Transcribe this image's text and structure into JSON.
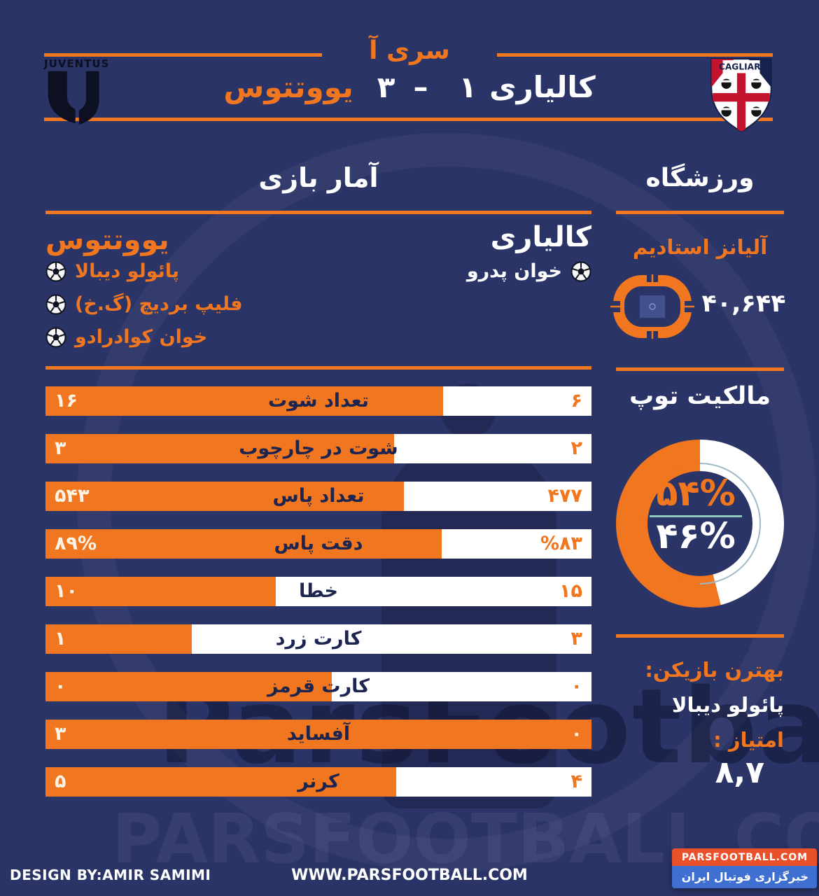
{
  "header": {
    "league": "سری آ",
    "home_team": "کالیاری",
    "home_score": "۱",
    "dash": "–",
    "away_score": "۳",
    "away_team": "یووتتوس",
    "juventus_wordmark": "JUVENTUS",
    "cagliari_wordmark": "CAGLIARI"
  },
  "sections": {
    "stats_title": "آمار بازی",
    "stadium_title": "ورزشگاه",
    "possession_title": "مالکیت توپ"
  },
  "scorers": {
    "juventus": {
      "team": "یووتتوس",
      "players": [
        "پائولو دیبالا",
        "فلیپ بردیچ (گ.خ)",
        "خوان کوادرادو"
      ]
    },
    "cagliari": {
      "team": "کالیاری",
      "players": [
        "خوان پدرو"
      ]
    }
  },
  "stadium": {
    "name": "آلیانز استادیم",
    "attendance": "۴۰,۶۴۴"
  },
  "best_player": {
    "heading": "بهترن بازیکن:",
    "name": "پائولو دیبالا",
    "score_label": "امتیاز :",
    "score": "۸,۷"
  },
  "footer": {
    "design_by": "DESIGN BY:AMIR SAMIMI",
    "website": "WWW.PARSFOOTBALL.COM",
    "badge_top": "PARSFOOTBALL.COM",
    "badge_bottom": "خبرگزاری فوتبال ایران"
  },
  "watermarks": {
    "dark_text": "ParsFootball",
    "light_text": "PARSFOOTBALL.COM"
  },
  "colors": {
    "background": "#2b3467",
    "orange": "#f0761f",
    "white": "#ffffff",
    "bar_label_navy": "#1b2550",
    "divider_teal": "#8fc7bc",
    "badge_orange": "#e8512a",
    "badge_blue": "#3f6fd1"
  },
  "chart_data": [
    {
      "type": "bar",
      "title": "آمار بازی",
      "orientation": "horizontal-opposed",
      "grid": false,
      "legend_position": "none",
      "categories": [
        "تعداد شوت",
        "شوت در چارچوب",
        "تعداد پاس",
        "دقت پاس",
        "خطا",
        "کارت زرد",
        "کارت قرمز",
        "آفساید",
        "کرنر"
      ],
      "series": [
        {
          "name": "یووتتوس",
          "side": "left",
          "color": "#f0761f",
          "values": [
            16,
            3,
            543,
            89,
            10,
            1,
            0,
            3,
            5
          ],
          "display": [
            "۱۶",
            "۳",
            "۵۴۳",
            "۸۹%",
            "۱۰",
            "۱",
            "۰",
            "۳",
            "۵"
          ]
        },
        {
          "name": "کالیاری",
          "side": "right",
          "color": "#ffffff",
          "values": [
            6,
            2,
            477,
            83,
            15,
            3,
            0,
            0,
            4
          ],
          "display": [
            "۶",
            "۲",
            "۴۷۷",
            "%۸۳",
            "۱۵",
            "۳",
            "۰",
            "۰",
            "۴"
          ]
        }
      ],
      "left_fill_pct": [
        72.8,
        63.8,
        65.6,
        72.6,
        42.2,
        26.8,
        52.4,
        100,
        64.2
      ]
    },
    {
      "type": "pie",
      "title": "مالکیت توپ",
      "labels": [
        "یووتتوس",
        "کالیاری"
      ],
      "values": [
        54,
        46
      ],
      "display": [
        "۵۴%",
        "۴۶%"
      ],
      "colors": [
        "#f0761f",
        "#ffffff"
      ],
      "donut": true,
      "start_angle_deg": 0
    }
  ]
}
